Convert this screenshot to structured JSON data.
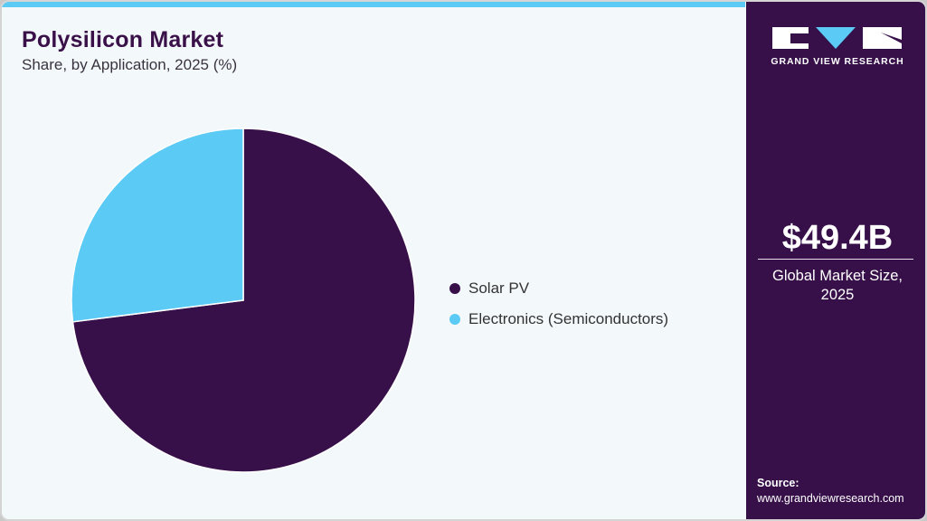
{
  "header": {
    "title": "Polysilicon Market",
    "subtitle": "Share, by Application, 2025 (%)"
  },
  "colors": {
    "accent_cyan": "#5BCAF5",
    "brand_purple": "#37104A",
    "background": "#F3F8FB"
  },
  "legend": {
    "items": [
      {
        "label": "Solar PV",
        "color": "#37104A"
      },
      {
        "label": "Electronics (Semiconductors)",
        "color": "#5BCAF5"
      }
    ]
  },
  "sidebar": {
    "logo": {
      "icon": "grand-view-research-logo",
      "text": "GRAND VIEW RESEARCH"
    },
    "stat": {
      "value": "$49.4B",
      "label_line1": "Global Market Size,",
      "label_line2": "2025"
    },
    "source": {
      "label": "Source:",
      "url": "www.grandviewresearch.com"
    }
  },
  "chart_data": {
    "type": "pie",
    "title": "Polysilicon Market",
    "subtitle": "Share, by Application, 2025 (%)",
    "categories": [
      "Solar PV",
      "Electronics (Semiconductors)"
    ],
    "values": [
      73,
      27
    ],
    "colors": [
      "#37104A",
      "#5BCAF5"
    ],
    "start_angle_deg": 90,
    "direction": "clockwise from 12 o'clock (Solar PV), Electronics occupies the upper-left wedge",
    "data_labels": false,
    "legend_position": "right",
    "annotation": "$49.4B Global Market Size, 2025"
  }
}
